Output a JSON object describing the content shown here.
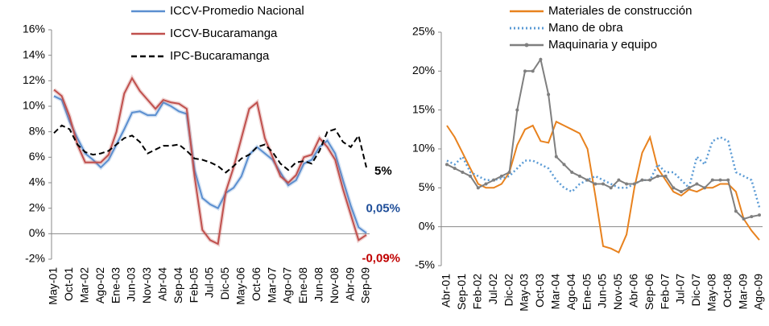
{
  "chart_data": [
    {
      "type": "line",
      "categories": [
        "May-01",
        null,
        "Oct-01",
        null,
        "Mar-02",
        null,
        "Ago-02",
        null,
        "Ene-03",
        null,
        "Jun-03",
        null,
        "Nov-03",
        null,
        "Abr-04",
        null,
        "Sep-04",
        null,
        "Feb-05",
        null,
        "Jul-05",
        null,
        "Dic-05",
        null,
        "May-06",
        null,
        "Oct-06",
        null,
        "Mar-07",
        null,
        "Ago-07",
        null,
        "Ene-08",
        null,
        "Jun-08",
        null,
        "Nov-08",
        null,
        "Abr-09",
        null,
        "Sep-09"
      ],
      "series": [
        {
          "name": "ICCV-Promedio Nacional",
          "color": "#5b8fd0",
          "style": "solid",
          "values": [
            10.8,
            10.5,
            8.8,
            7.5,
            6.3,
            5.8,
            5.2,
            5.8,
            7.0,
            8.2,
            9.5,
            9.6,
            9.3,
            9.3,
            10.3,
            10.0,
            9.6,
            9.4,
            5.0,
            2.8,
            2.3,
            2.0,
            3.2,
            3.6,
            4.5,
            6.2,
            6.8,
            6.3,
            5.8,
            4.8,
            3.8,
            4.2,
            5.5,
            5.8,
            6.8,
            7.3,
            6.3,
            4.2,
            2.2,
            0.5,
            0.05
          ]
        },
        {
          "name": "ICCV-Bucaramanga",
          "color": "#c0504d",
          "style": "solid",
          "values": [
            11.3,
            10.8,
            9.2,
            7.0,
            5.6,
            5.6,
            5.6,
            6.2,
            8.0,
            11.0,
            12.2,
            11.2,
            10.5,
            9.8,
            10.5,
            10.3,
            10.2,
            9.8,
            4.5,
            0.3,
            -0.5,
            -0.8,
            3.3,
            5.2,
            7.5,
            9.8,
            10.3,
            7.5,
            6.0,
            4.5,
            4.0,
            4.6,
            6.0,
            6.2,
            7.5,
            6.8,
            5.8,
            3.5,
            1.5,
            -0.5,
            -0.09
          ]
        },
        {
          "name": "IPC-Bucaramanga",
          "color": "#000000",
          "style": "dashed",
          "values": [
            7.9,
            8.5,
            8.2,
            7.0,
            6.4,
            6.2,
            6.3,
            6.5,
            7.0,
            7.5,
            7.7,
            7.2,
            6.3,
            6.6,
            6.9,
            6.9,
            7.0,
            6.5,
            5.9,
            5.8,
            5.6,
            5.3,
            4.8,
            5.3,
            5.9,
            6.2,
            6.8,
            7.0,
            6.4,
            5.5,
            5.0,
            5.6,
            5.7,
            5.5,
            6.5,
            8.0,
            8.2,
            7.2,
            6.8,
            7.7,
            5.2
          ]
        }
      ],
      "annotations": [
        "0,05%",
        "-0,09%",
        "5%"
      ],
      "ylim": [
        -2,
        16
      ],
      "yticks": [
        {
          "value": -2,
          "label": "-2%"
        },
        {
          "value": 0,
          "label": "0%"
        },
        {
          "value": 2,
          "label": "2%"
        },
        {
          "value": 4,
          "label": "4%"
        },
        {
          "value": 6,
          "label": "6%"
        },
        {
          "value": 8,
          "label": "8%"
        },
        {
          "value": 10,
          "label": "10%"
        },
        {
          "value": 12,
          "label": "12%"
        },
        {
          "value": 14,
          "label": "14%"
        },
        {
          "value": 16,
          "label": "16%"
        }
      ],
      "grid": false,
      "legend": "top"
    },
    {
      "type": "line",
      "categories": [
        "Abr-01",
        null,
        "Sep-01",
        null,
        "Feb-02",
        null,
        "Jul-02",
        null,
        "Dic-02",
        null,
        "May-03",
        null,
        "Oct-03",
        null,
        "Mar-04",
        null,
        "Ago-04",
        null,
        "Ene-05",
        null,
        "Jun-05",
        null,
        "Nov-05",
        null,
        "Abr-06",
        null,
        "Sep-06",
        null,
        "Feb-07",
        null,
        "Jul-07",
        null,
        "Dic-07",
        null,
        "May-08",
        null,
        "Oct-08",
        null,
        "Mar-09",
        null,
        "Ago-09"
      ],
      "series": [
        {
          "name": "Materiales de construcción",
          "color": "#e8821e",
          "style": "solid",
          "values": [
            13,
            11.5,
            9.5,
            7.5,
            5.5,
            5.0,
            5.0,
            5.5,
            7.0,
            10.5,
            12.5,
            13.0,
            11.0,
            10.8,
            13.5,
            13.0,
            12.5,
            12.0,
            10.0,
            4.0,
            -2.5,
            -2.8,
            -3.3,
            -1.0,
            5.0,
            9.5,
            11.5,
            7.5,
            6.0,
            4.5,
            4.0,
            4.8,
            4.5,
            5.0,
            5.0,
            5.5,
            5.5,
            4.5,
            1.0,
            -0.5,
            -1.7
          ]
        },
        {
          "name": "Mano de obra",
          "color": "#5b9bd5",
          "style": "dotted",
          "values": [
            8.5,
            8.0,
            9.0,
            7.0,
            6.5,
            6.0,
            6.0,
            6.2,
            6.5,
            7.5,
            8.5,
            8.5,
            8.0,
            7.5,
            6.0,
            5.0,
            4.5,
            5.5,
            6.0,
            6.5,
            6.0,
            5.5,
            5.0,
            5.0,
            5.5,
            6.0,
            6.0,
            8.0,
            7.0,
            7.0,
            6.0,
            5.0,
            9.0,
            8.0,
            11.0,
            11.5,
            11.0,
            7.0,
            6.5,
            6.0,
            2.5
          ]
        },
        {
          "name": "Maquinaria y equipo",
          "color": "#7f7f7f",
          "style": "markers",
          "values": [
            8.0,
            7.5,
            7.0,
            6.5,
            5.0,
            5.5,
            6.0,
            6.5,
            7.0,
            15.0,
            20.0,
            20.0,
            21.5,
            17.0,
            9.0,
            8.0,
            7.0,
            6.5,
            6.0,
            5.5,
            5.5,
            5.0,
            6.0,
            5.5,
            5.5,
            6.0,
            6.0,
            6.5,
            6.5,
            5.0,
            4.5,
            5.0,
            5.5,
            5.0,
            6.0,
            6.0,
            6.0,
            2.0,
            1.0,
            1.3,
            1.5
          ]
        }
      ],
      "ylim": [
        -5,
        25
      ],
      "yticks": [
        {
          "value": -5,
          "label": "-5%"
        },
        {
          "value": 0,
          "label": "0%"
        },
        {
          "value": 5,
          "label": "5%"
        },
        {
          "value": 10,
          "label": "10%"
        },
        {
          "value": 15,
          "label": "15%"
        },
        {
          "value": 20,
          "label": "20%"
        },
        {
          "value": 25,
          "label": "25%"
        }
      ],
      "grid": false,
      "legend": "top"
    }
  ]
}
